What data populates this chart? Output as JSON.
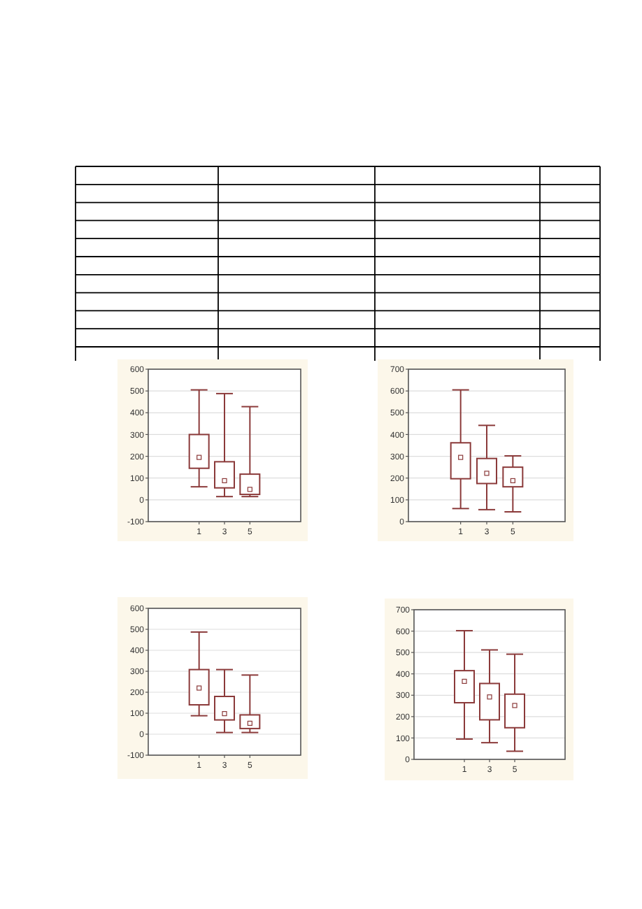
{
  "chart_data": [
    {
      "type": "box",
      "categories": [
        "1",
        "3",
        "5"
      ],
      "ylim": [
        -100,
        600
      ],
      "yticks": [
        -100,
        0,
        100,
        200,
        300,
        400,
        500,
        600
      ],
      "grid": "y",
      "color": "#8b3a3a",
      "boxes": [
        {
          "low": 60,
          "q1": 145,
          "median": 195,
          "q3": 300,
          "high": 505
        },
        {
          "low": 15,
          "q1": 55,
          "median": 88,
          "q3": 175,
          "high": 488
        },
        {
          "low": 15,
          "q1": 25,
          "median": 48,
          "q3": 118,
          "high": 428
        }
      ]
    },
    {
      "type": "box",
      "categories": [
        "1",
        "3",
        "5"
      ],
      "ylim": [
        0,
        700
      ],
      "yticks": [
        0,
        100,
        200,
        300,
        400,
        500,
        600,
        700
      ],
      "grid": "y",
      "color": "#8b3a3a",
      "boxes": [
        {
          "low": 60,
          "q1": 197,
          "median": 295,
          "q3": 362,
          "high": 605
        },
        {
          "low": 55,
          "q1": 175,
          "median": 222,
          "q3": 290,
          "high": 442
        },
        {
          "low": 45,
          "q1": 160,
          "median": 188,
          "q3": 250,
          "high": 302
        }
      ]
    },
    {
      "type": "box",
      "categories": [
        "1",
        "3",
        "5"
      ],
      "ylim": [
        -100,
        600
      ],
      "yticks": [
        -100,
        0,
        100,
        200,
        300,
        400,
        500,
        600
      ],
      "grid": "y",
      "color": "#8b3a3a",
      "boxes": [
        {
          "low": 88,
          "q1": 140,
          "median": 220,
          "q3": 308,
          "high": 487
        },
        {
          "low": 8,
          "q1": 68,
          "median": 98,
          "q3": 180,
          "high": 308
        },
        {
          "low": 8,
          "q1": 27,
          "median": 52,
          "q3": 92,
          "high": 282
        }
      ]
    },
    {
      "type": "box",
      "categories": [
        "1",
        "3",
        "5"
      ],
      "ylim": [
        0,
        700
      ],
      "yticks": [
        0,
        100,
        200,
        300,
        400,
        500,
        600,
        700
      ],
      "grid": "y",
      "color": "#8b3a3a",
      "boxes": [
        {
          "low": 95,
          "q1": 265,
          "median": 365,
          "q3": 415,
          "high": 602
        },
        {
          "low": 78,
          "q1": 185,
          "median": 292,
          "q3": 355,
          "high": 512
        },
        {
          "low": 38,
          "q1": 148,
          "median": 252,
          "q3": 305,
          "high": 492
        }
      ]
    }
  ]
}
